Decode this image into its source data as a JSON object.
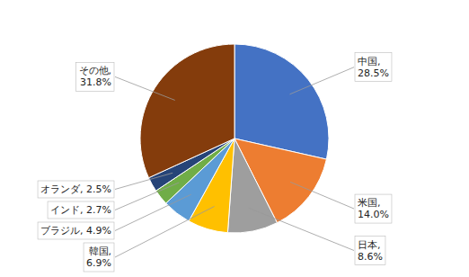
{
  "chart_data": {
    "type": "pie",
    "values": [
      28.5,
      14.0,
      8.6,
      6.9,
      4.9,
      2.7,
      2.5,
      31.8
    ],
    "value_labels": [
      "中国,\n28.5%",
      "米国,\n14.0%",
      "日本,\n8.6%",
      "韓国,\n6.9%",
      "ブラジル, 4.9%",
      "インド, 2.7%",
      "オランダ, 2.5%",
      "その他,\n31.8%"
    ],
    "colors": [
      "#4472C4",
      "#ED7D31",
      "#9E9E9E",
      "#FFC000",
      "#5B9BD5",
      "#70AD47",
      "#264478",
      "#843C0C"
    ],
    "data_labels": true
  }
}
